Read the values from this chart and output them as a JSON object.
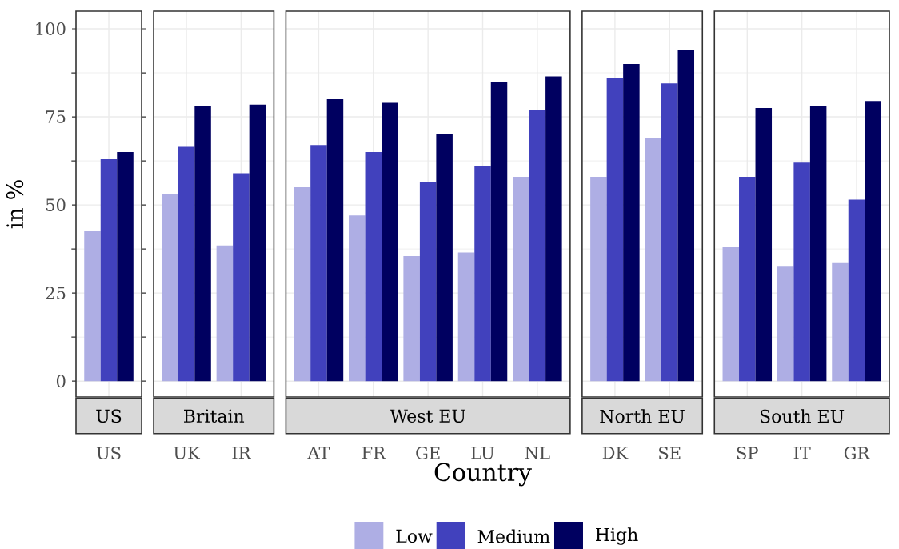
{
  "chart_data": [
    {
      "type": "bar",
      "title": "US",
      "ylabel": "in %",
      "categories": [
        "US"
      ],
      "ylim": [
        -4.5,
        105
      ],
      "yticks": [
        0,
        25,
        50,
        75,
        100
      ],
      "grid": true,
      "legend": "bottom",
      "series": [
        {
          "name": "Low",
          "color": "#aeaee4",
          "values": [
            42.5
          ]
        },
        {
          "name": "Medium",
          "color": "#4141bd",
          "values": [
            63
          ]
        },
        {
          "name": "High",
          "color": "#000060",
          "values": [
            65
          ]
        }
      ]
    },
    {
      "type": "bar",
      "title": "Britain",
      "categories": [
        "UK",
        "IR"
      ],
      "ylim": [
        -4.5,
        105
      ],
      "yticks": [
        0,
        25,
        50,
        75,
        100
      ],
      "grid": true,
      "tick_labels": "x",
      "series": [
        {
          "color": "#aeaee4",
          "values": [
            53,
            38.5
          ]
        },
        {
          "color": "#4141bd",
          "values": [
            66.5,
            59
          ]
        },
        {
          "color": "#000060",
          "values": [
            78,
            78.5
          ]
        }
      ]
    },
    {
      "type": "bar",
      "title": "West EU",
      "xlabel": "Country",
      "categories": [
        "AT",
        "FR",
        "GE",
        "LU",
        "NL"
      ],
      "ylim": [
        -4.5,
        105
      ],
      "yticks": [
        0,
        25,
        50,
        75,
        100
      ],
      "grid": true,
      "tick_labels": "x",
      "series": [
        {
          "color": "#aeaee4",
          "values": [
            55,
            47,
            35.5,
            36.5,
            58
          ]
        },
        {
          "color": "#4141bd",
          "values": [
            67,
            65,
            56.5,
            61,
            77
          ]
        },
        {
          "color": "#000060",
          "values": [
            80,
            79,
            70,
            85,
            86.5
          ]
        }
      ]
    },
    {
      "type": "bar",
      "title": "North EU",
      "categories": [
        "DK",
        "SE"
      ],
      "ylim": [
        -4.5,
        105
      ],
      "yticks": [
        0,
        25,
        50,
        75,
        100
      ],
      "grid": true,
      "tick_labels": "x",
      "series": [
        {
          "color": "#aeaee4",
          "values": [
            58,
            69
          ]
        },
        {
          "color": "#4141bd",
          "values": [
            86,
            84.5
          ]
        },
        {
          "color": "#000060",
          "values": [
            90,
            94
          ]
        }
      ]
    },
    {
      "type": "bar",
      "title": "South EU",
      "categories": [
        "SP",
        "IT",
        "GR"
      ],
      "ylim": [
        -4.5,
        105
      ],
      "yticks": [
        0,
        25,
        50,
        75,
        100
      ],
      "grid": true,
      "tick_labels": "x",
      "series": [
        {
          "color": "#aeaee4",
          "values": [
            38,
            32.5,
            33.5
          ]
        },
        {
          "color": "#4141bd",
          "values": [
            58,
            62,
            51.5
          ]
        },
        {
          "color": "#000060",
          "values": [
            77.5,
            78,
            79.5
          ]
        }
      ]
    }
  ]
}
